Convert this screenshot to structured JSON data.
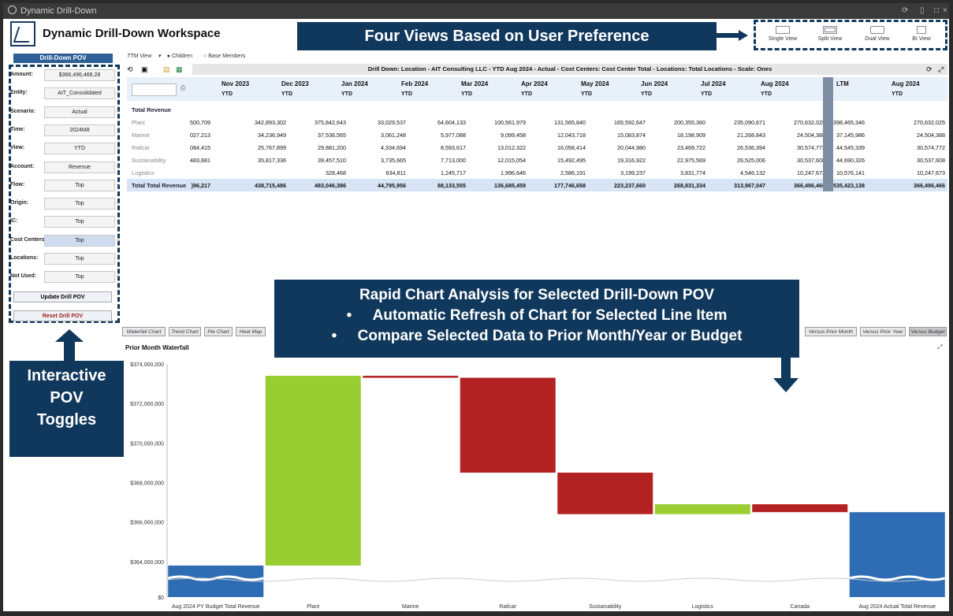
{
  "window": {
    "title": "Dynamic Drill-Down"
  },
  "header": {
    "title": "Dynamic Drill-Down Workspace"
  },
  "callouts": {
    "views": "Four Views Based on User Preference",
    "pov": [
      "Interactive",
      "POV",
      "Toggles"
    ],
    "chart": [
      "Rapid Chart Analysis for Selected Drill-Down POV",
      "Automatic Refresh of Chart for Selected Line Item",
      "Compare Selected Data to Prior Month/Year or Budget"
    ]
  },
  "views": [
    {
      "label": "Single View",
      "icon": "single-view-icon"
    },
    {
      "label": "Split View",
      "icon": "split-view-icon"
    },
    {
      "label": "Dual View",
      "icon": "dual-view-icon"
    },
    {
      "label": "BI View",
      "icon": "bi-view-icon"
    }
  ],
  "pov": {
    "title": "Drill-Down POV",
    "fields": [
      {
        "label": "Amount:",
        "value": "$366,496,466.28"
      },
      {
        "label": "Entity:",
        "value": "AIT_Consolidated"
      },
      {
        "label": "Scenario:",
        "value": "Actual"
      },
      {
        "label": "Time:",
        "value": "2024M8"
      },
      {
        "label": "View:",
        "value": "YTD"
      },
      {
        "label": "Account:",
        "value": "Revenue"
      },
      {
        "label": "Flow:",
        "value": "Top"
      },
      {
        "label": "Origin:",
        "value": "Top"
      },
      {
        "label": "IC:",
        "value": "Top"
      },
      {
        "label": "Cost Centers:",
        "value": "Top"
      },
      {
        "label": "Locations:",
        "value": "Top"
      },
      {
        "label": "Not Used:",
        "value": "Top"
      }
    ],
    "update_label": "Update Drill POV",
    "reset_label": "Reset Drill POV"
  },
  "options": {
    "view_label": "TTM View",
    "children": "Children",
    "base": "Base Members"
  },
  "grid": {
    "title": "Drill Down: Location - AIT Consulting LLC - YTD Aug 2024 - Actual - Cost Centers: Cost Center Total - Locations: Total Locations - Scale: Ones",
    "columns": [
      "Nov 2023",
      "Dec 2023",
      "Jan 2024",
      "Feb 2024",
      "Mar 2024",
      "Apr 2024",
      "May 2024",
      "Jun 2024",
      "Jul 2024",
      "Aug 2024"
    ],
    "col_sub": "YTD",
    "ltm": {
      "label": "LTM",
      "month": "Aug 2024",
      "sub": "YTD"
    },
    "section": "Total Revenue",
    "rows": [
      {
        "label": "Plant",
        "first": "500,709",
        "values": [
          "342,893,302",
          "375,842,643",
          "33,029,537",
          "64,604,133",
          "100,561,979",
          "131,565,840",
          "165,592,647",
          "200,355,360",
          "235,090,671",
          "270,632,025"
        ],
        "ltm": "398,465,346",
        "last": "270,632,025"
      },
      {
        "label": "Marine",
        "first": "027,213",
        "values": [
          "34,236,949",
          "37,536,565",
          "3,061,248",
          "5,977,088",
          "9,099,458",
          "12,043,718",
          "15,083,874",
          "18,198,909",
          "21,268,843",
          "24,504,388"
        ],
        "ltm": "37,145,986",
        "last": "24,504,388"
      },
      {
        "label": "Railcar",
        "first": "084,415",
        "values": [
          "25,767,899",
          "29,881,200",
          "4,334,694",
          "8,593,617",
          "13,012,322",
          "16,058,414",
          "20,044,980",
          "23,469,722",
          "26,536,394",
          "30,574,772"
        ],
        "ltm": "44,545,339",
        "last": "30,574,772"
      },
      {
        "label": "Sustainability",
        "first": "483,881",
        "values": [
          "35,817,336",
          "39,457,510",
          "3,735,665",
          "7,713,000",
          "12,015,054",
          "15,492,495",
          "19,316,922",
          "22,975,569",
          "26,525,006",
          "30,537,608"
        ],
        "ltm": "44,690,326",
        "last": "30,537,608"
      },
      {
        "label": "Logistics",
        "first": "",
        "values": [
          "",
          "328,468",
          "634,811",
          "1,245,717",
          "1,996,646",
          "2,586,191",
          "3,199,237",
          "3,831,774",
          "4,546,132",
          "10,247,673"
        ],
        "ltm": "10,576,141",
        "last": "10,247,673"
      }
    ],
    "total": {
      "label": "Total Total Revenue",
      "first": ")96,217",
      "values": [
        "438,715,486",
        "483,046,386",
        "44,795,956",
        "88,133,555",
        "136,685,459",
        "177,746,658",
        "223,237,660",
        "268,831,334",
        "313,967,047",
        "366,496,466"
      ],
      "ltm": "535,423,138",
      "last": "366,496,466"
    }
  },
  "chart_tabs": {
    "left": [
      "Waterfall Chart",
      "Trend Chart",
      "Pie Chart",
      "Heat Map"
    ],
    "right": [
      "Versus Prior Month",
      "Versus Prior Year",
      "Versus Budget"
    ]
  },
  "chart_data": {
    "type": "bar",
    "subtype": "waterfall",
    "title": "Prior Month Waterfall",
    "categories": [
      "Aug 2024 PY Budget Total Revenue",
      "Plant",
      "Marine",
      "Railcar",
      "Sustainability",
      "Logistics",
      "Canada",
      "Aug 2024 Actual Total Revenue"
    ],
    "bars": [
      {
        "category": "Aug 2024 PY Budget Total Revenue",
        "kind": "total",
        "value": 363800000
      },
      {
        "category": "Plant",
        "kind": "increase",
        "start": 363800000,
        "end": 373400000
      },
      {
        "category": "Marine",
        "kind": "decrease",
        "start": 373400000,
        "end": 373300000
      },
      {
        "category": "Railcar",
        "kind": "decrease",
        "start": 373300000,
        "end": 368500000
      },
      {
        "category": "Sustainability",
        "kind": "decrease",
        "start": 368500000,
        "end": 366400000
      },
      {
        "category": "Logistics",
        "kind": "increase",
        "start": 366400000,
        "end": 366900000
      },
      {
        "category": "Canada",
        "kind": "decrease",
        "start": 366900000,
        "end": 366500000
      },
      {
        "category": "Aug 2024 Actual Total Revenue",
        "kind": "total",
        "value": 366500000
      }
    ],
    "yticks": [
      "$374,000,000",
      "$372,000,000",
      "$370,000,000",
      "$368,000,000",
      "$366,000,000",
      "$364,000,000",
      "$0"
    ],
    "ylim": [
      363000000,
      374000000
    ],
    "axis_break": true,
    "colors": {
      "total": "#2e6db4",
      "increase": "#9acd32",
      "decrease": "#b22222"
    }
  }
}
